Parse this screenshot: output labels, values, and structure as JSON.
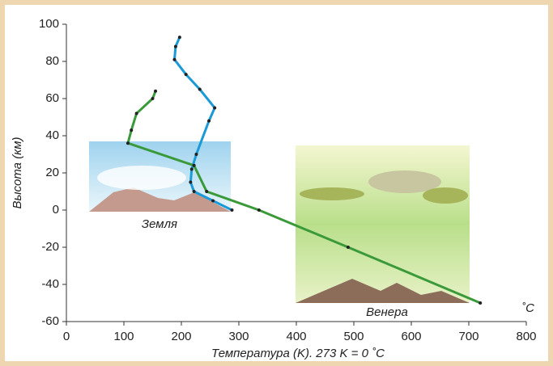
{
  "chart_data": {
    "type": "line",
    "xlabel": "Температура (K). 273 K = 0 ˚C",
    "ylabel": "Высота (км)",
    "annotations": [
      "Земля",
      "Венера",
      "˚C"
    ],
    "xlim": [
      0,
      800
    ],
    "xticks": [
      0,
      100,
      200,
      300,
      400,
      500,
      600,
      700,
      800
    ],
    "ylim": [
      -60,
      100
    ],
    "yticks": [
      -60,
      -40,
      -20,
      0,
      20,
      40,
      60,
      80,
      100
    ],
    "series": [
      {
        "name": "Земля",
        "color": "#1a9ad6",
        "x": [
          288,
          255,
          222,
          216,
          218,
          226,
          248,
          258,
          232,
          208,
          188,
          190,
          197
        ],
        "values": [
          0,
          5,
          10,
          15,
          22,
          30,
          48,
          55,
          65,
          73,
          81,
          88,
          93
        ]
      },
      {
        "name": "Венера",
        "color": "#3a9a3a",
        "x": [
          720,
          490,
          335,
          244,
          222,
          107,
          113,
          122,
          150,
          155
        ],
        "values": [
          -50,
          -20,
          0,
          10,
          24,
          36,
          43,
          52,
          60,
          64
        ]
      }
    ]
  }
}
